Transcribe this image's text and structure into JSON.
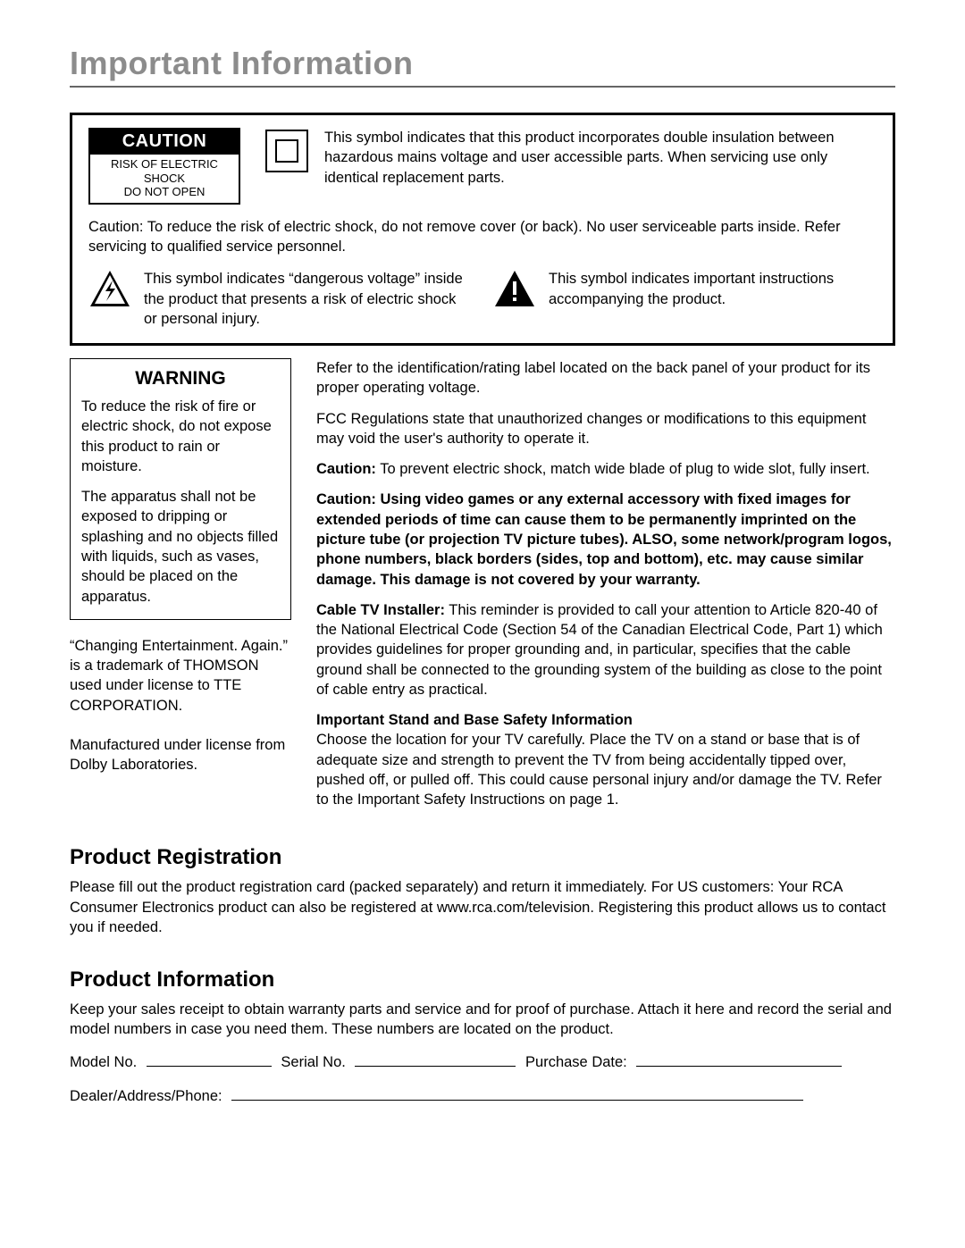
{
  "page": {
    "title": "Important Information",
    "title_color": "#8c8c8c",
    "title_fontsize": 36,
    "rule_color": "#666666",
    "background": "#ffffff",
    "text_color": "#000000",
    "body_fontsize": 16.5
  },
  "caution_block": {
    "badge": {
      "title": "CAUTION",
      "line1": "RISK OF ELECTRIC SHOCK",
      "line2": "DO NOT OPEN",
      "title_bg": "#000000",
      "title_fg": "#ffffff"
    },
    "double_insulation": {
      "text": "This symbol indicates that this product incorporates double insulation between hazardous mains voltage and user accessible parts. When servicing use only identical replacement parts."
    },
    "mid_text": "Caution: To reduce the risk of electric shock, do not remove cover (or back). No user serviceable parts inside. Refer servicing to qualified service personnel.",
    "voltage_symbol_text": "This symbol indicates “dangerous voltage” inside the product that presents a risk of electric shock or personal injury.",
    "important_symbol_text": "This symbol indicates important instructions accompanying the product."
  },
  "warning": {
    "title": "WARNING",
    "p1": "To reduce the risk of fire or electric shock, do not expose this product to rain or moisture.",
    "p2": "The apparatus shall not be exposed to dripping or splashing and no objects filled with liquids, such as vases, should be placed on the apparatus."
  },
  "left_notes": {
    "trademark": "“Changing Entertainment. Again.” is a trademark of THOMSON used under license to TTE CORPORATION.",
    "dolby": "Manufactured under license from Dolby Laboratories."
  },
  "right": {
    "p1": "Refer to the identification/rating label located on the back panel of your product for its proper operating voltage.",
    "p2": "FCC Regulations state that unauthorized changes or modifications to this equipment may void the user's authority to operate it.",
    "p3_label": "Caution:",
    "p3_text": " To prevent electric shock, match wide blade of plug to wide slot, fully insert.",
    "p4_bold": "Caution: Using video games or any external accessory with fixed images for extended periods of time can cause them to be permanently imprinted on the picture tube (or projection TV picture tubes). ALSO, some network/program logos, phone numbers, black borders (sides, top and bottom), etc. may cause similar damage. This damage is not covered by your warranty.",
    "p5_label": "Cable TV Installer:",
    "p5_text": " This reminder is provided to call your attention to Article 820-40 of the National Electrical Code (Section 54 of the Canadian Electrical Code, Part 1) which provides guidelines for proper grounding and, in particular, specifies that the cable ground shall be connected to the grounding system of the building as close to the point of cable entry as practical.",
    "p6_label": "Important Stand and Base Safety Information",
    "p6_text": "Choose the location for your TV carefully. Place the TV on a stand or base that is of adequate size and strength to prevent the TV from being accidentally tipped over, pushed off, or pulled off. This could cause personal injury and/or damage the TV. Refer to the Important Safety Instructions on page 1."
  },
  "registration": {
    "heading": "Product Registration",
    "text": "Please fill out the product registration card (packed separately) and return it immediately.  For US customers: Your RCA Consumer Electronics product can also be registered at www.rca.com/television. Registering this product allows us to contact you if needed."
  },
  "info": {
    "heading": "Product Information",
    "text": "Keep your sales receipt to obtain warranty parts and service and for proof of purchase. Attach it here and record the serial and model numbers in case you need them. These numbers are located on the product.",
    "fields": {
      "model": "Model No.",
      "serial": "Serial No.",
      "purchase": "Purchase Date:",
      "dealer": "Dealer/Address/Phone:"
    },
    "blank_widths": {
      "model": 140,
      "serial": 180,
      "purchase": 230,
      "dealer": 640
    }
  }
}
